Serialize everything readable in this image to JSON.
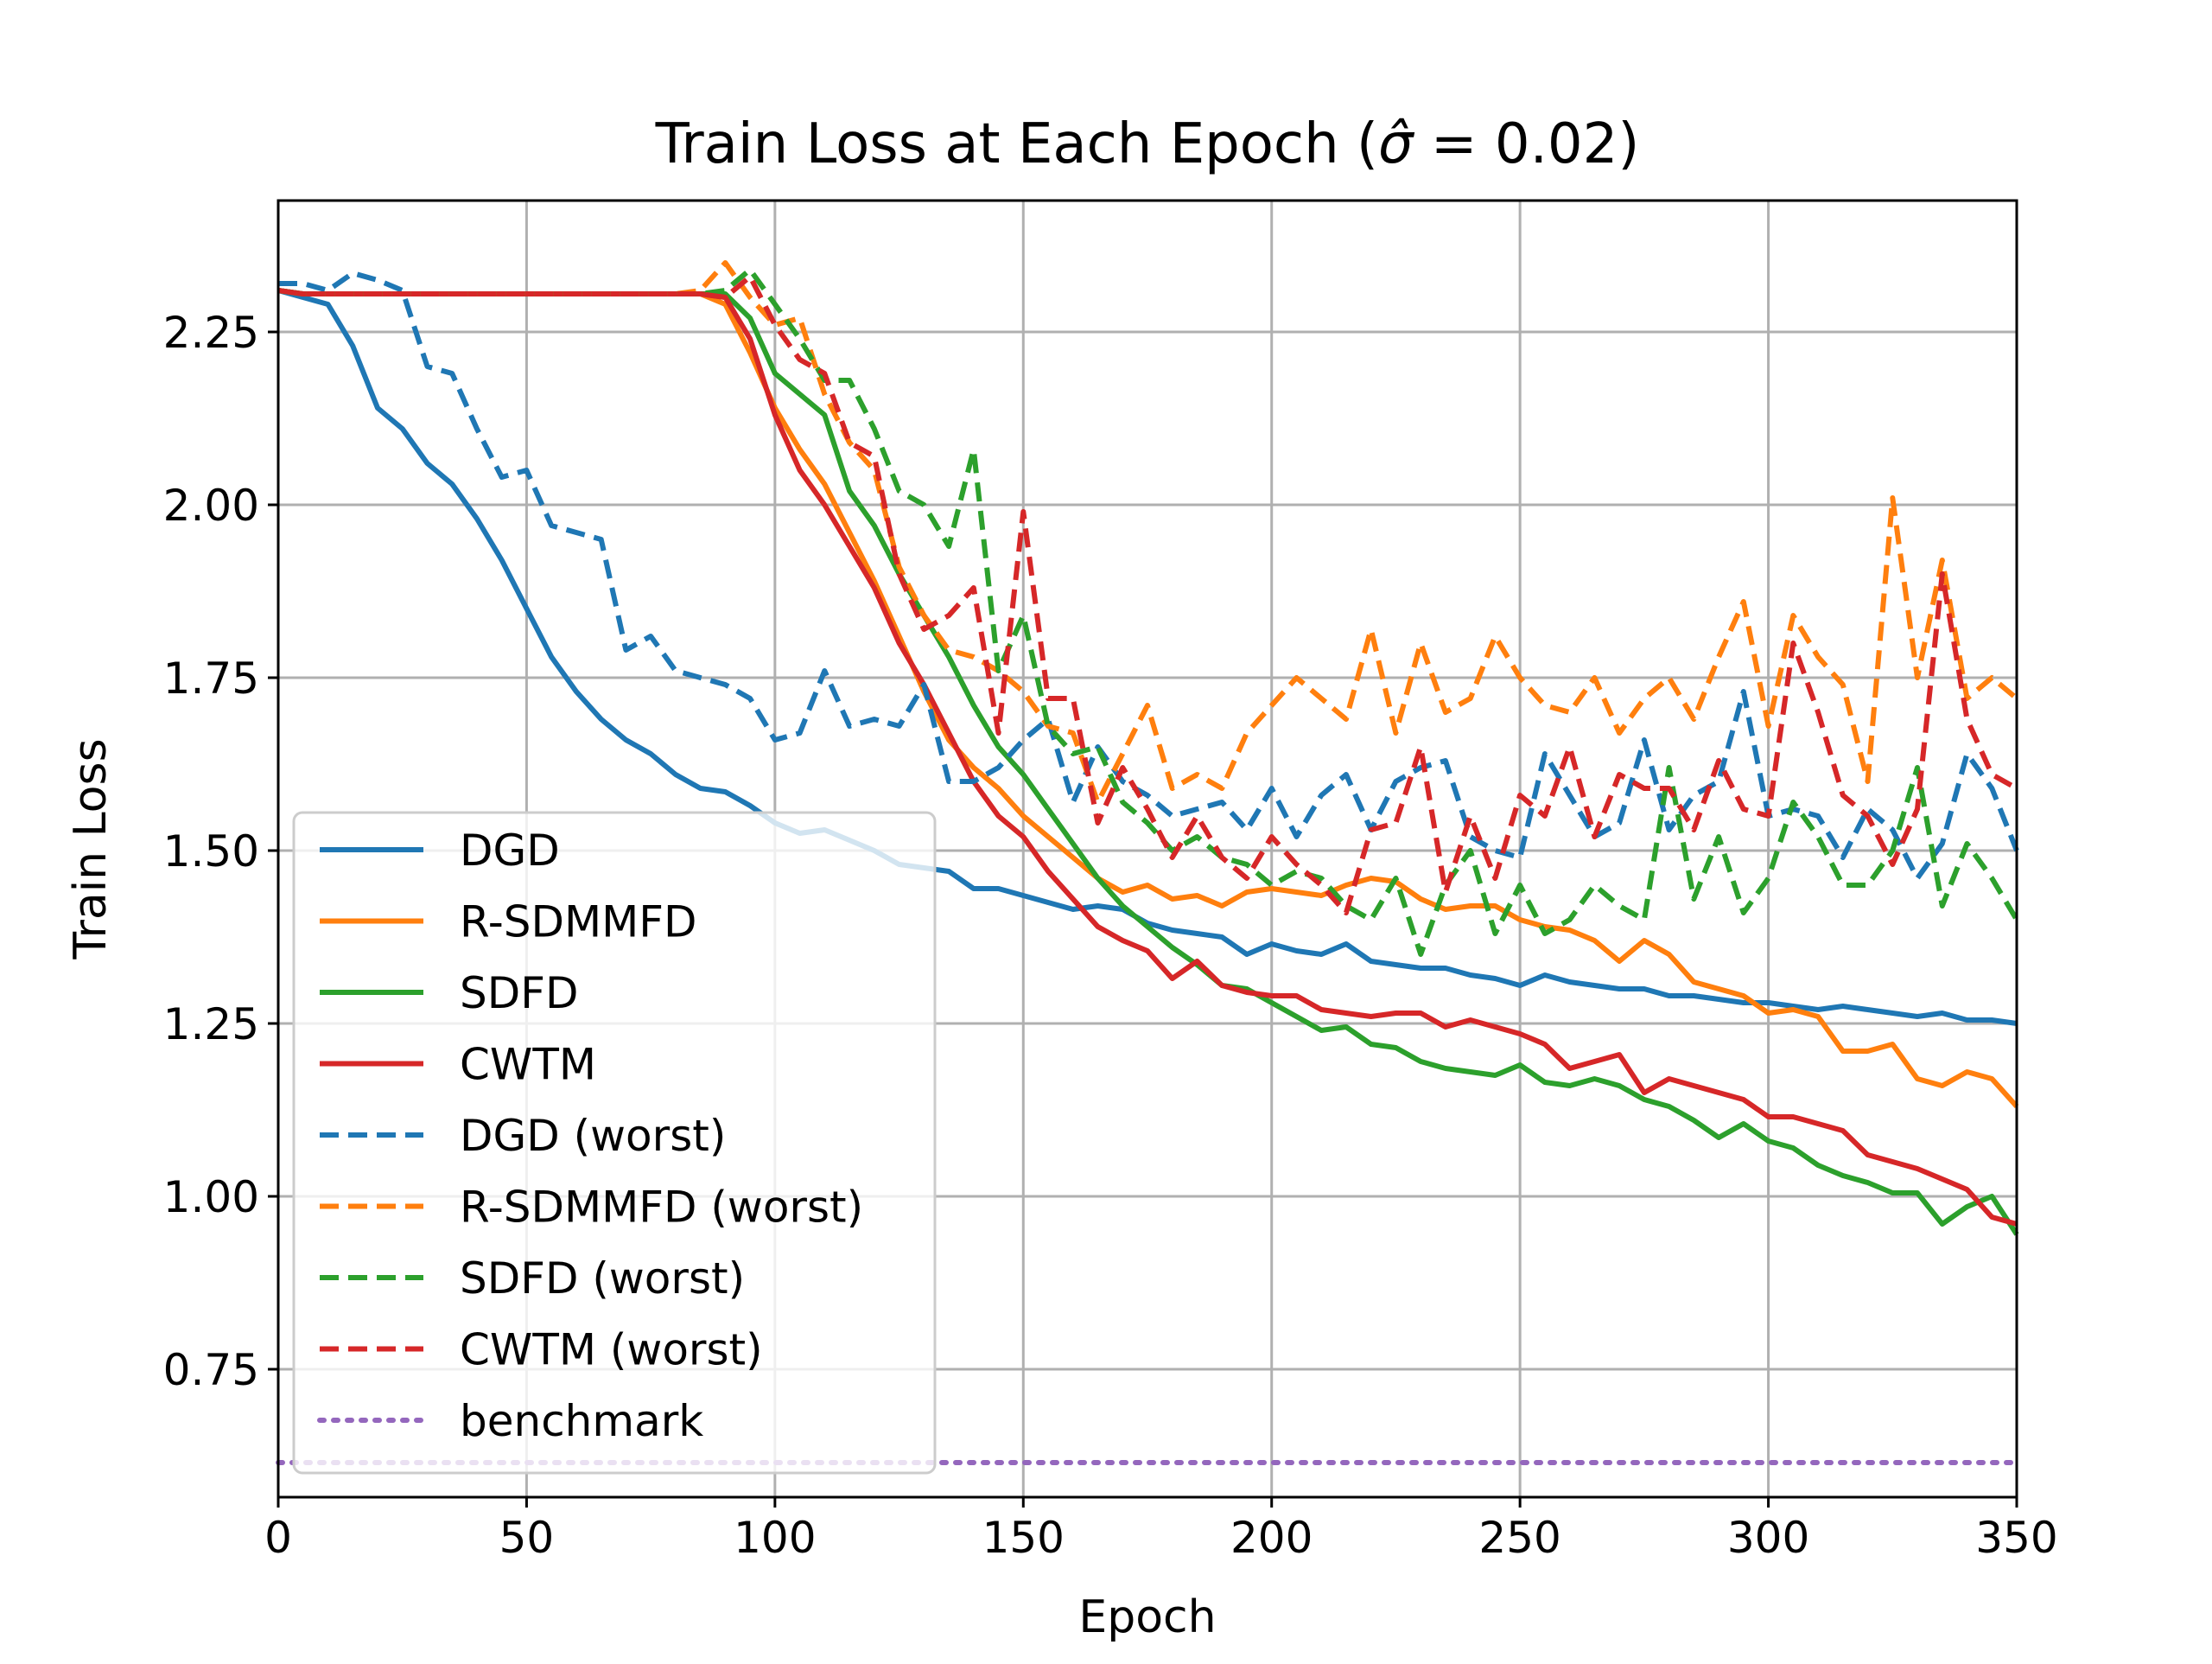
{
  "chart_data": {
    "type": "line",
    "title": "Train Loss at Each Epoch (σ̂ = 0.02)",
    "title_parts": {
      "prefix": "Train Loss at Each Epoch (",
      "sigma_hat": "σ̂",
      "suffix": " = 0.02)"
    },
    "xlabel": "Epoch",
    "ylabel": "Train Loss",
    "xlim": [
      0,
      350
    ],
    "ylim": [
      0.565,
      2.44
    ],
    "xticks": [
      0,
      50,
      100,
      150,
      200,
      250,
      300,
      350
    ],
    "xtick_labels": [
      "0",
      "50",
      "100",
      "150",
      "200",
      "250",
      "300",
      "350"
    ],
    "yticks": [
      0.75,
      1.0,
      1.25,
      1.5,
      1.75,
      2.0,
      2.25
    ],
    "ytick_labels": [
      "0.75",
      "1.00",
      "1.25",
      "1.50",
      "1.75",
      "2.00",
      "2.25"
    ],
    "grid": true,
    "legend_position": "lower-left",
    "series": [
      {
        "name": "DGD",
        "color": "#1f77b4",
        "style": "solid",
        "x": [
          0,
          5,
          10,
          15,
          20,
          25,
          30,
          35,
          40,
          45,
          50,
          55,
          60,
          65,
          70,
          75,
          80,
          85,
          90,
          95,
          100,
          105,
          110,
          115,
          120,
          125,
          130,
          135,
          140,
          145,
          150,
          155,
          160,
          165,
          170,
          175,
          180,
          185,
          190,
          195,
          200,
          205,
          210,
          215,
          220,
          225,
          230,
          235,
          240,
          245,
          250,
          255,
          260,
          265,
          270,
          275,
          280,
          285,
          290,
          295,
          300,
          305,
          310,
          315,
          320,
          325,
          330,
          335,
          340,
          345,
          350
        ],
        "y": [
          2.31,
          2.3,
          2.29,
          2.23,
          2.14,
          2.11,
          2.06,
          2.03,
          1.98,
          1.92,
          1.85,
          1.78,
          1.73,
          1.69,
          1.66,
          1.64,
          1.61,
          1.59,
          1.585,
          1.565,
          1.54,
          1.525,
          1.53,
          1.515,
          1.5,
          1.48,
          1.475,
          1.47,
          1.445,
          1.445,
          1.435,
          1.425,
          1.415,
          1.42,
          1.415,
          1.395,
          1.385,
          1.38,
          1.375,
          1.35,
          1.365,
          1.355,
          1.35,
          1.365,
          1.34,
          1.335,
          1.33,
          1.33,
          1.32,
          1.315,
          1.305,
          1.32,
          1.31,
          1.305,
          1.3,
          1.3,
          1.29,
          1.29,
          1.285,
          1.28,
          1.28,
          1.275,
          1.27,
          1.275,
          1.27,
          1.265,
          1.26,
          1.265,
          1.255,
          1.255,
          1.25
        ]
      },
      {
        "name": "R-SDMMFD",
        "color": "#ff7f0e",
        "style": "solid",
        "x": [
          0,
          5,
          10,
          15,
          20,
          25,
          30,
          35,
          40,
          45,
          50,
          55,
          60,
          65,
          70,
          75,
          80,
          85,
          90,
          95,
          100,
          105,
          110,
          115,
          120,
          125,
          130,
          135,
          140,
          145,
          150,
          155,
          160,
          165,
          170,
          175,
          180,
          185,
          190,
          195,
          200,
          205,
          210,
          215,
          220,
          225,
          230,
          235,
          240,
          245,
          250,
          255,
          260,
          265,
          270,
          275,
          280,
          285,
          290,
          295,
          300,
          305,
          310,
          315,
          320,
          325,
          330,
          335,
          340,
          345,
          350
        ],
        "y": [
          2.31,
          2.305,
          2.305,
          2.305,
          2.305,
          2.305,
          2.305,
          2.305,
          2.305,
          2.305,
          2.305,
          2.305,
          2.305,
          2.305,
          2.305,
          2.305,
          2.305,
          2.305,
          2.29,
          2.22,
          2.14,
          2.08,
          2.03,
          1.96,
          1.89,
          1.81,
          1.73,
          1.66,
          1.62,
          1.59,
          1.55,
          1.52,
          1.49,
          1.46,
          1.44,
          1.45,
          1.43,
          1.435,
          1.42,
          1.44,
          1.445,
          1.44,
          1.435,
          1.45,
          1.46,
          1.455,
          1.43,
          1.415,
          1.42,
          1.42,
          1.4,
          1.39,
          1.385,
          1.37,
          1.34,
          1.37,
          1.35,
          1.31,
          1.3,
          1.29,
          1.265,
          1.27,
          1.26,
          1.21,
          1.21,
          1.22,
          1.17,
          1.16,
          1.18,
          1.17,
          1.13
        ]
      },
      {
        "name": "SDFD",
        "color": "#2ca02c",
        "style": "solid",
        "x": [
          0,
          5,
          10,
          15,
          20,
          25,
          30,
          35,
          40,
          45,
          50,
          55,
          60,
          65,
          70,
          75,
          80,
          85,
          90,
          95,
          100,
          105,
          110,
          115,
          120,
          125,
          130,
          135,
          140,
          145,
          150,
          155,
          160,
          165,
          170,
          175,
          180,
          185,
          190,
          195,
          200,
          205,
          210,
          215,
          220,
          225,
          230,
          235,
          240,
          245,
          250,
          255,
          260,
          265,
          270,
          275,
          280,
          285,
          290,
          295,
          300,
          305,
          310,
          315,
          320,
          325,
          330,
          335,
          340,
          345,
          350
        ],
        "y": [
          2.31,
          2.305,
          2.305,
          2.305,
          2.305,
          2.305,
          2.305,
          2.305,
          2.305,
          2.305,
          2.305,
          2.305,
          2.305,
          2.305,
          2.305,
          2.305,
          2.305,
          2.305,
          2.305,
          2.27,
          2.19,
          2.16,
          2.13,
          2.02,
          1.97,
          1.9,
          1.84,
          1.78,
          1.71,
          1.65,
          1.61,
          1.56,
          1.51,
          1.46,
          1.42,
          1.39,
          1.36,
          1.335,
          1.305,
          1.3,
          1.28,
          1.26,
          1.24,
          1.245,
          1.22,
          1.215,
          1.195,
          1.185,
          1.18,
          1.175,
          1.19,
          1.165,
          1.16,
          1.17,
          1.16,
          1.14,
          1.13,
          1.11,
          1.085,
          1.105,
          1.08,
          1.07,
          1.045,
          1.03,
          1.02,
          1.005,
          1.005,
          0.96,
          0.985,
          1.0,
          0.945
        ]
      },
      {
        "name": "CWTM",
        "color": "#d62728",
        "style": "solid",
        "x": [
          0,
          5,
          10,
          15,
          20,
          25,
          30,
          35,
          40,
          45,
          50,
          55,
          60,
          65,
          70,
          75,
          80,
          85,
          90,
          95,
          100,
          105,
          110,
          115,
          120,
          125,
          130,
          135,
          140,
          145,
          150,
          155,
          160,
          165,
          170,
          175,
          180,
          185,
          190,
          195,
          200,
          205,
          210,
          215,
          220,
          225,
          230,
          235,
          240,
          245,
          250,
          255,
          260,
          265,
          270,
          275,
          280,
          285,
          290,
          295,
          300,
          305,
          310,
          315,
          320,
          325,
          330,
          335,
          340,
          345,
          350
        ],
        "y": [
          2.31,
          2.305,
          2.305,
          2.305,
          2.305,
          2.305,
          2.305,
          2.305,
          2.305,
          2.305,
          2.305,
          2.305,
          2.305,
          2.305,
          2.305,
          2.305,
          2.305,
          2.305,
          2.3,
          2.24,
          2.13,
          2.05,
          2.0,
          1.94,
          1.88,
          1.8,
          1.74,
          1.67,
          1.6,
          1.55,
          1.52,
          1.47,
          1.43,
          1.39,
          1.37,
          1.355,
          1.315,
          1.34,
          1.305,
          1.295,
          1.29,
          1.29,
          1.27,
          1.265,
          1.26,
          1.265,
          1.265,
          1.245,
          1.255,
          1.245,
          1.235,
          1.22,
          1.185,
          1.195,
          1.205,
          1.15,
          1.17,
          1.16,
          1.15,
          1.14,
          1.115,
          1.115,
          1.105,
          1.095,
          1.06,
          1.05,
          1.04,
          1.025,
          1.01,
          0.97,
          0.96
        ]
      },
      {
        "name": "DGD (worst)",
        "color": "#1f77b4",
        "style": "dashed",
        "x": [
          0,
          5,
          10,
          15,
          20,
          25,
          30,
          35,
          40,
          45,
          50,
          55,
          60,
          65,
          70,
          75,
          80,
          85,
          90,
          95,
          100,
          105,
          110,
          115,
          120,
          125,
          130,
          135,
          140,
          145,
          150,
          155,
          160,
          165,
          170,
          175,
          180,
          185,
          190,
          195,
          200,
          205,
          210,
          215,
          220,
          225,
          230,
          235,
          240,
          245,
          250,
          255,
          260,
          265,
          270,
          275,
          280,
          285,
          290,
          295,
          300,
          305,
          310,
          315,
          320,
          325,
          330,
          335,
          340,
          345,
          350
        ],
        "y": [
          2.32,
          2.32,
          2.31,
          2.335,
          2.325,
          2.31,
          2.2,
          2.19,
          2.11,
          2.04,
          2.05,
          1.97,
          1.96,
          1.95,
          1.79,
          1.81,
          1.76,
          1.75,
          1.74,
          1.72,
          1.66,
          1.67,
          1.76,
          1.68,
          1.69,
          1.68,
          1.74,
          1.6,
          1.6,
          1.62,
          1.66,
          1.69,
          1.57,
          1.65,
          1.6,
          1.58,
          1.55,
          1.56,
          1.57,
          1.53,
          1.59,
          1.52,
          1.58,
          1.61,
          1.53,
          1.6,
          1.62,
          1.63,
          1.52,
          1.5,
          1.49,
          1.64,
          1.58,
          1.52,
          1.54,
          1.66,
          1.53,
          1.58,
          1.6,
          1.73,
          1.55,
          1.56,
          1.55,
          1.49,
          1.56,
          1.53,
          1.46,
          1.51,
          1.64,
          1.59,
          1.5
        ]
      },
      {
        "name": "R-SDMMFD (worst)",
        "color": "#ff7f0e",
        "style": "dashed",
        "x": [
          0,
          5,
          10,
          15,
          20,
          25,
          30,
          35,
          40,
          45,
          50,
          55,
          60,
          65,
          70,
          75,
          80,
          85,
          90,
          95,
          100,
          105,
          110,
          115,
          120,
          125,
          130,
          135,
          140,
          145,
          150,
          155,
          160,
          165,
          170,
          175,
          180,
          185,
          190,
          195,
          200,
          205,
          210,
          215,
          220,
          225,
          230,
          235,
          240,
          245,
          250,
          255,
          260,
          265,
          270,
          275,
          280,
          285,
          290,
          295,
          300,
          305,
          310,
          315,
          320,
          325,
          330,
          335,
          340,
          345,
          350
        ],
        "y": [
          2.31,
          2.305,
          2.305,
          2.305,
          2.305,
          2.305,
          2.305,
          2.305,
          2.305,
          2.305,
          2.305,
          2.305,
          2.305,
          2.305,
          2.305,
          2.305,
          2.305,
          2.31,
          2.35,
          2.3,
          2.26,
          2.27,
          2.16,
          2.09,
          2.05,
          1.91,
          1.84,
          1.79,
          1.78,
          1.76,
          1.73,
          1.68,
          1.67,
          1.57,
          1.64,
          1.71,
          1.59,
          1.61,
          1.59,
          1.67,
          1.71,
          1.75,
          1.72,
          1.69,
          1.82,
          1.67,
          1.8,
          1.7,
          1.72,
          1.81,
          1.75,
          1.71,
          1.7,
          1.75,
          1.67,
          1.72,
          1.75,
          1.69,
          1.78,
          1.86,
          1.68,
          1.84,
          1.78,
          1.74,
          1.6,
          2.01,
          1.75,
          1.92,
          1.72,
          1.75,
          1.72
        ]
      },
      {
        "name": "SDFD (worst)",
        "color": "#2ca02c",
        "style": "dashed",
        "x": [
          0,
          5,
          10,
          15,
          20,
          25,
          30,
          35,
          40,
          45,
          50,
          55,
          60,
          65,
          70,
          75,
          80,
          85,
          90,
          95,
          100,
          105,
          110,
          115,
          120,
          125,
          130,
          135,
          140,
          145,
          150,
          155,
          160,
          165,
          170,
          175,
          180,
          185,
          190,
          195,
          200,
          205,
          210,
          215,
          220,
          225,
          230,
          235,
          240,
          245,
          250,
          255,
          260,
          265,
          270,
          275,
          280,
          285,
          290,
          295,
          300,
          305,
          310,
          315,
          320,
          325,
          330,
          335,
          340,
          345,
          350
        ],
        "y": [
          2.31,
          2.305,
          2.305,
          2.305,
          2.305,
          2.305,
          2.305,
          2.305,
          2.305,
          2.305,
          2.305,
          2.305,
          2.305,
          2.305,
          2.305,
          2.305,
          2.305,
          2.305,
          2.31,
          2.34,
          2.29,
          2.24,
          2.18,
          2.18,
          2.11,
          2.02,
          2.0,
          1.94,
          2.08,
          1.76,
          1.84,
          1.68,
          1.64,
          1.65,
          1.57,
          1.54,
          1.5,
          1.52,
          1.49,
          1.48,
          1.45,
          1.47,
          1.46,
          1.42,
          1.4,
          1.46,
          1.35,
          1.45,
          1.5,
          1.38,
          1.45,
          1.38,
          1.4,
          1.45,
          1.42,
          1.4,
          1.62,
          1.43,
          1.52,
          1.41,
          1.46,
          1.57,
          1.52,
          1.45,
          1.45,
          1.5,
          1.62,
          1.42,
          1.51,
          1.46,
          1.4
        ]
      },
      {
        "name": "CWTM (worst)",
        "color": "#d62728",
        "style": "dashed",
        "x": [
          0,
          5,
          10,
          15,
          20,
          25,
          30,
          35,
          40,
          45,
          50,
          55,
          60,
          65,
          70,
          75,
          80,
          85,
          90,
          95,
          100,
          105,
          110,
          115,
          120,
          125,
          130,
          135,
          140,
          145,
          150,
          155,
          160,
          165,
          170,
          175,
          180,
          185,
          190,
          195,
          200,
          205,
          210,
          215,
          220,
          225,
          230,
          235,
          240,
          245,
          250,
          255,
          260,
          265,
          270,
          275,
          280,
          285,
          290,
          295,
          300,
          305,
          310,
          315,
          320,
          325,
          330,
          335,
          340,
          345,
          350
        ],
        "y": [
          2.31,
          2.305,
          2.305,
          2.305,
          2.305,
          2.305,
          2.305,
          2.305,
          2.305,
          2.305,
          2.305,
          2.305,
          2.305,
          2.305,
          2.305,
          2.305,
          2.305,
          2.305,
          2.3,
          2.33,
          2.26,
          2.21,
          2.19,
          2.09,
          2.07,
          1.9,
          1.82,
          1.84,
          1.88,
          1.67,
          1.99,
          1.72,
          1.72,
          1.54,
          1.62,
          1.56,
          1.49,
          1.55,
          1.49,
          1.46,
          1.52,
          1.48,
          1.45,
          1.41,
          1.53,
          1.54,
          1.65,
          1.44,
          1.55,
          1.46,
          1.58,
          1.55,
          1.65,
          1.52,
          1.61,
          1.59,
          1.59,
          1.53,
          1.63,
          1.56,
          1.55,
          1.8,
          1.7,
          1.58,
          1.55,
          1.48,
          1.56,
          1.9,
          1.69,
          1.61,
          1.59
        ]
      },
      {
        "name": "benchmark",
        "color": "#9467bd",
        "style": "dotted",
        "x": [
          0,
          350
        ],
        "y": [
          0.615,
          0.615
        ]
      }
    ]
  }
}
